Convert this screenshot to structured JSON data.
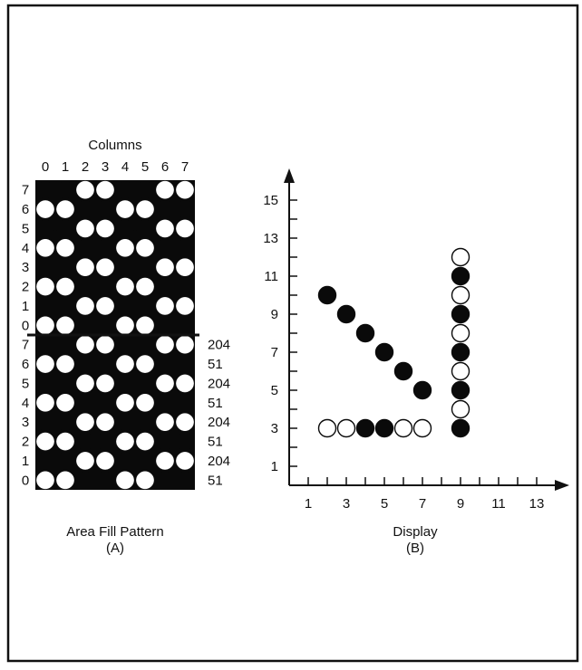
{
  "panel_a": {
    "heading": "Columns",
    "column_labels": [
      "0",
      "1",
      "2",
      "3",
      "4",
      "5",
      "6",
      "7"
    ],
    "row_labels_upper": [
      "7",
      "6",
      "5",
      "4",
      "3",
      "2",
      "1",
      "0"
    ],
    "row_labels_lower": [
      "7",
      "6",
      "5",
      "4",
      "3",
      "2",
      "1",
      "0"
    ],
    "row_values": [
      "204",
      "51",
      "204",
      "51",
      "204",
      "51",
      "204",
      "51"
    ],
    "caption_title": "Area Fill Pattern",
    "caption_tag": "(A)",
    "byte_pattern": {
      "204_filled_columns": [
        0,
        1,
        4,
        5
      ],
      "51_filled_columns": [
        2,
        3,
        6,
        7
      ]
    }
  },
  "panel_b": {
    "caption_title": "Display",
    "caption_tag": "(B)"
  },
  "chart_data": {
    "type": "scatter",
    "xlabel": "",
    "ylabel": "",
    "xlim": [
      0,
      14
    ],
    "ylim": [
      0,
      16
    ],
    "x_tick_labels": [
      "1",
      "3",
      "5",
      "7",
      "9",
      "11",
      "13"
    ],
    "y_tick_labels": [
      "1",
      "3",
      "5",
      "7",
      "9",
      "11",
      "13",
      "15"
    ],
    "x_ticks_labeled": [
      1,
      3,
      5,
      7,
      9,
      11,
      13
    ],
    "y_ticks_labeled": [
      1,
      3,
      5,
      7,
      9,
      11,
      13,
      15
    ],
    "x_ticks_minor": [
      2,
      4,
      6,
      8,
      10,
      12
    ],
    "y_ticks_minor": [
      2,
      4,
      6,
      8,
      10,
      12,
      14
    ],
    "series": [
      {
        "values": [
          {
            "x": 2,
            "y": 10,
            "filled": true
          },
          {
            "x": 3,
            "y": 9,
            "filled": true
          },
          {
            "x": 4,
            "y": 8,
            "filled": true
          },
          {
            "x": 5,
            "y": 7,
            "filled": true
          },
          {
            "x": 6,
            "y": 6,
            "filled": true
          },
          {
            "x": 7,
            "y": 5,
            "filled": true
          }
        ]
      },
      {
        "values": [
          {
            "x": 2,
            "y": 3,
            "filled": false
          },
          {
            "x": 3,
            "y": 3,
            "filled": false
          },
          {
            "x": 4,
            "y": 3,
            "filled": true
          },
          {
            "x": 5,
            "y": 3,
            "filled": true
          },
          {
            "x": 6,
            "y": 3,
            "filled": false
          },
          {
            "x": 7,
            "y": 3,
            "filled": false
          }
        ]
      },
      {
        "values": [
          {
            "x": 9,
            "y": 3,
            "filled": true
          },
          {
            "x": 9,
            "y": 4,
            "filled": false
          },
          {
            "x": 9,
            "y": 5,
            "filled": true
          },
          {
            "x": 9,
            "y": 6,
            "filled": false
          },
          {
            "x": 9,
            "y": 7,
            "filled": true
          },
          {
            "x": 9,
            "y": 8,
            "filled": false
          },
          {
            "x": 9,
            "y": 9,
            "filled": true
          },
          {
            "x": 9,
            "y": 10,
            "filled": false
          },
          {
            "x": 9,
            "y": 11,
            "filled": true
          },
          {
            "x": 9,
            "y": 12,
            "filled": false
          }
        ]
      }
    ]
  }
}
